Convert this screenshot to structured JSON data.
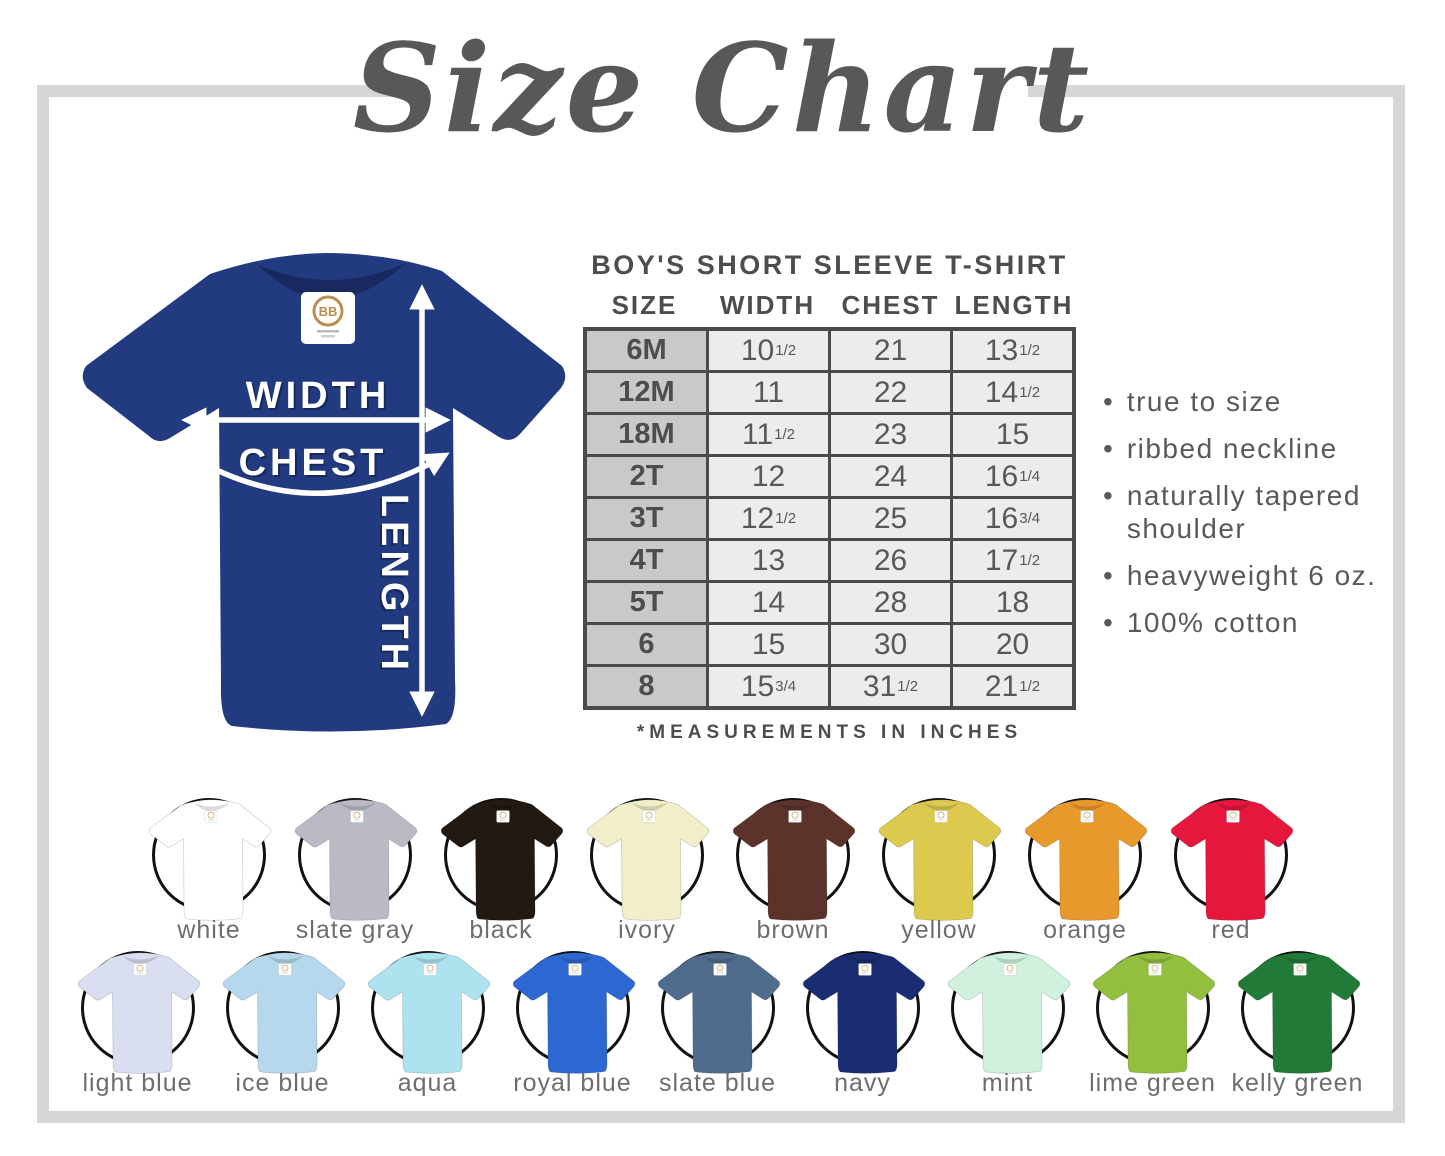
{
  "title": "Size Chart",
  "diagram": {
    "width_label": "WIDTH",
    "chest_label": "CHEST",
    "length_label": "LENGTH",
    "shirt_color": "#223a7f",
    "tag_logo": "BB"
  },
  "table": {
    "title": "BOY'S SHORT SLEEVE T-SHIRT",
    "columns": [
      "SIZE",
      "WIDTH",
      "CHEST",
      "LENGTH"
    ],
    "rows": [
      {
        "size": "6M",
        "width": "10|1/2",
        "chest": "21",
        "length": "13|1/2"
      },
      {
        "size": "12M",
        "width": "11",
        "chest": "22",
        "length": "14|1/2"
      },
      {
        "size": "18M",
        "width": "11|1/2",
        "chest": "23",
        "length": "15"
      },
      {
        "size": "2T",
        "width": "12",
        "chest": "24",
        "length": "16|1/4"
      },
      {
        "size": "3T",
        "width": "12|1/2",
        "chest": "25",
        "length": "16|3/4"
      },
      {
        "size": "4T",
        "width": "13",
        "chest": "26",
        "length": "17|1/2"
      },
      {
        "size": "5T",
        "width": "14",
        "chest": "28",
        "length": "18"
      },
      {
        "size": "6",
        "width": "15",
        "chest": "30",
        "length": "20"
      },
      {
        "size": "8",
        "width": "15|3/4",
        "chest": "31|1/2",
        "length": "21|1/2"
      }
    ],
    "footnote": "*MEASUREMENTS IN INCHES"
  },
  "features": [
    "true to size",
    "ribbed neckline",
    "naturally tapered shoulder",
    "heavyweight 6 oz.",
    "100% cotton"
  ],
  "swatch_rows": [
    [
      {
        "name": "white",
        "hex": "#ffffff"
      },
      {
        "name": "slate gray",
        "hex": "#b9bac4"
      },
      {
        "name": "black",
        "hex": "#221913"
      },
      {
        "name": "ivory",
        "hex": "#f1eec9"
      },
      {
        "name": "brown",
        "hex": "#5b332a"
      },
      {
        "name": "yellow",
        "hex": "#ddc94e"
      },
      {
        "name": "orange",
        "hex": "#e8992b"
      },
      {
        "name": "red",
        "hex": "#e5173d"
      }
    ],
    [
      {
        "name": "light blue",
        "hex": "#d9def1"
      },
      {
        "name": "ice blue",
        "hex": "#b6d8ec"
      },
      {
        "name": "aqua",
        "hex": "#ace3ef"
      },
      {
        "name": "royal blue",
        "hex": "#2d68d2"
      },
      {
        "name": "slate blue",
        "hex": "#4f6c8c"
      },
      {
        "name": "navy",
        "hex": "#1b2d72"
      },
      {
        "name": "mint",
        "hex": "#cff1de"
      },
      {
        "name": "lime green",
        "hex": "#93bf3e"
      },
      {
        "name": "kelly green",
        "hex": "#217a38"
      }
    ]
  ]
}
